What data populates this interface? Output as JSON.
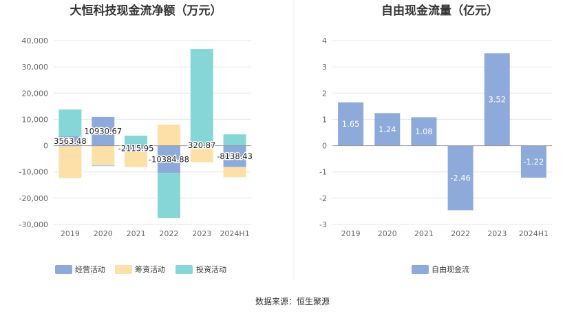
{
  "source_note": "数据来源：恒生聚源",
  "colors": {
    "operating": "#8eaadb",
    "financing": "#fde0a8",
    "investing": "#86d6d8",
    "free_cash_flow": "#8eaadb",
    "grid": "#e6e6ee",
    "axis": "#999999"
  },
  "chart_data": [
    {
      "type": "bar",
      "stacked": true,
      "title": "大恒科技现金流净额（万元）",
      "categories": [
        "2019",
        "2020",
        "2021",
        "2022",
        "2023",
        "2024H1"
      ],
      "series": [
        {
          "name": "经营活动",
          "values": [
            3563.48,
            10930.67,
            -2115.95,
            -10384.88,
            320.87,
            -8138.43
          ]
        },
        {
          "name": "筹资活动",
          "values": [
            -12400,
            -7500,
            -6000,
            8000,
            -6300,
            -3900
          ]
        },
        {
          "name": "投资活动",
          "values": [
            10200,
            -300,
            3800,
            -17200,
            36500,
            4300
          ]
        }
      ],
      "data_labels": [
        "3563.48",
        "10930.67",
        "-2115.95",
        "-10384.88",
        "320.87",
        "-8138.43"
      ],
      "yticks": [
        "40,000",
        "30,000",
        "20,000",
        "10,000",
        "0",
        "-10,000",
        "-20,000",
        "-30,000"
      ],
      "ylim": [
        -30000,
        40000
      ],
      "xlabel": "",
      "ylabel": "",
      "grid": true,
      "legend": "bottom"
    },
    {
      "type": "bar",
      "title": "自由现金流量（亿元）",
      "categories": [
        "2019",
        "2020",
        "2021",
        "2022",
        "2023",
        "2024H1"
      ],
      "series": [
        {
          "name": "自由现金流",
          "values": [
            1.65,
            1.24,
            1.08,
            -2.46,
            3.52,
            -1.22
          ]
        }
      ],
      "data_labels": [
        "1.65",
        "1.24",
        "1.08",
        "-2.46",
        "3.52",
        "-1.22"
      ],
      "yticks": [
        "4",
        "3",
        "2",
        "1",
        "0",
        "-1",
        "-2",
        "-3"
      ],
      "ylim": [
        -3,
        4
      ],
      "xlabel": "",
      "ylabel": "",
      "grid": true,
      "legend": "bottom"
    }
  ]
}
